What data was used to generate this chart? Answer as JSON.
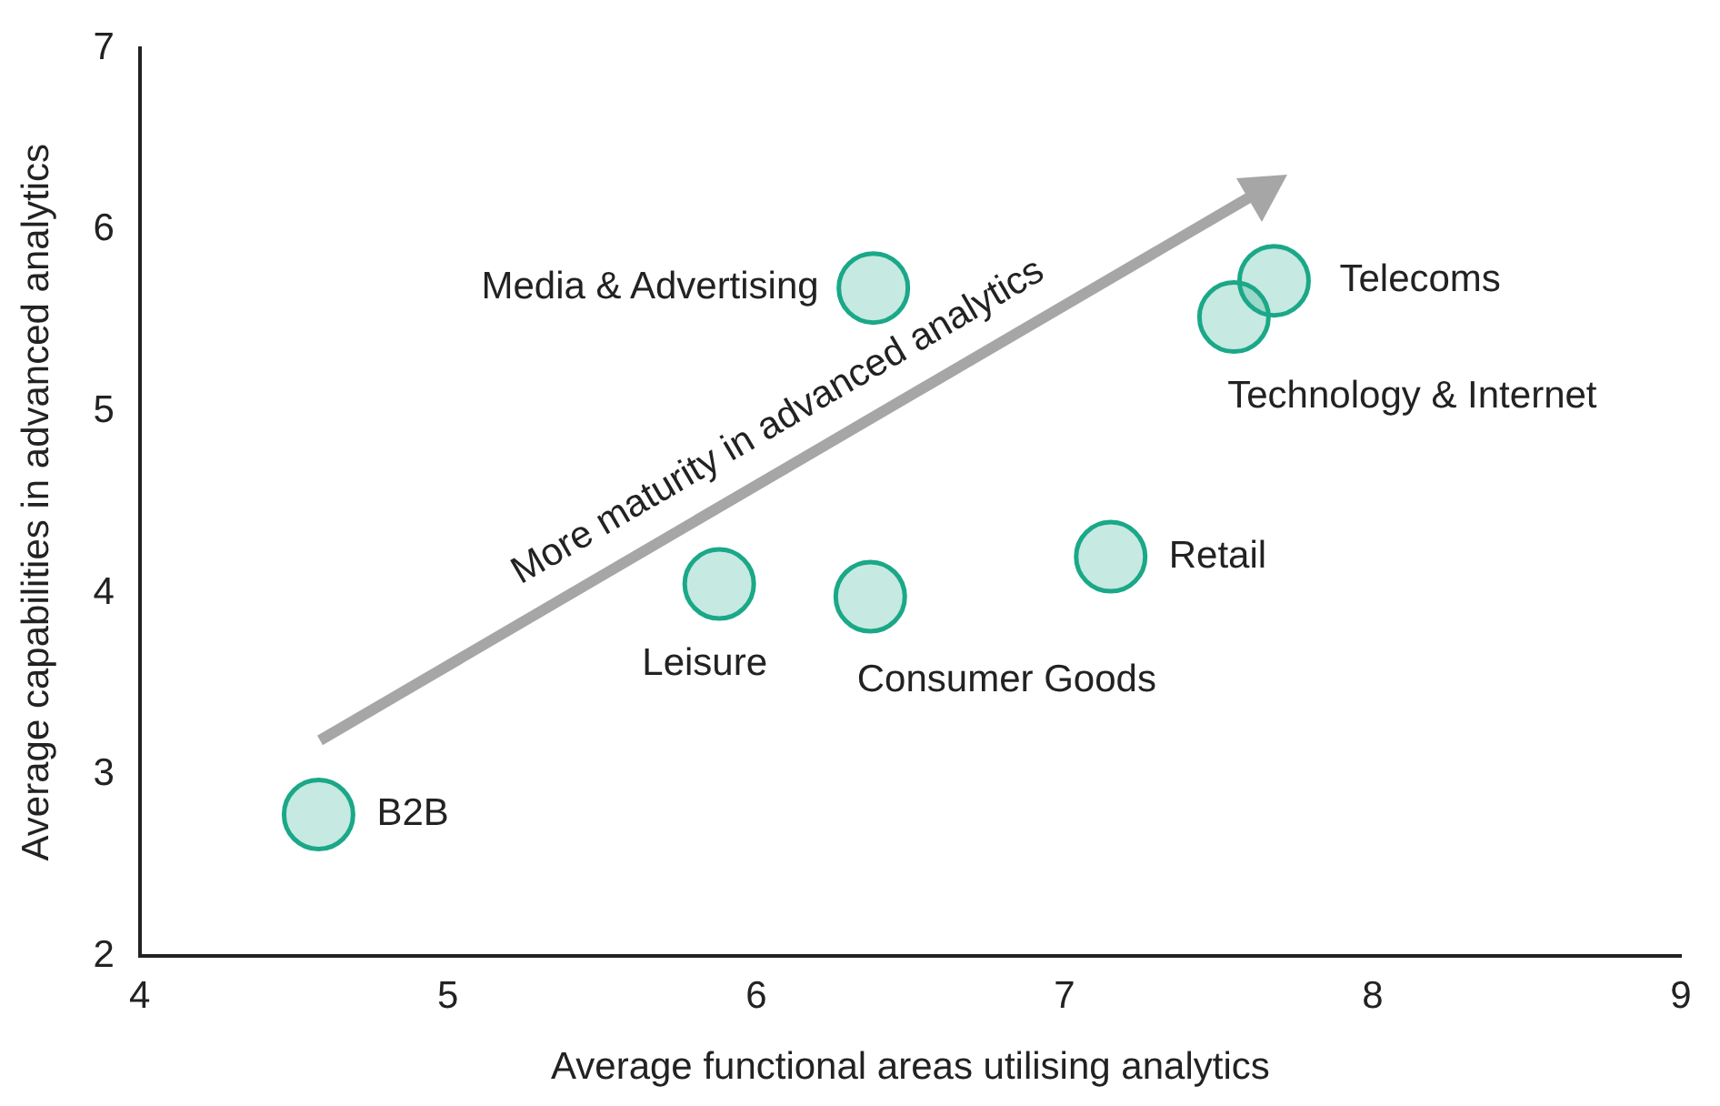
{
  "chart_data": {
    "type": "scatter",
    "xlabel": "Average functional areas utilising analytics",
    "ylabel": "Average capabilities in advanced analytics",
    "x": [
      4.58,
      5.88,
      6.37,
      7.15,
      6.38,
      7.68,
      7.55
    ],
    "values": [
      2.78,
      4.05,
      3.98,
      4.2,
      5.68,
      5.72,
      5.52
    ],
    "color": "#1aa888",
    "marker": "circle",
    "grid": false,
    "legend": false,
    "xlim": [
      4,
      9
    ],
    "xticks": [
      4,
      5,
      6,
      7,
      8,
      9
    ],
    "ylim": [
      2,
      7
    ],
    "yticks": [
      2,
      3,
      4,
      5,
      6,
      7
    ],
    "annotations": [
      {
        "text": "B2B",
        "x": 4.58,
        "y": 2.78
      },
      {
        "text": "Leisure",
        "x": 5.88,
        "y": 4.05
      },
      {
        "text": "Consumer Goods",
        "x": 6.37,
        "y": 3.98
      },
      {
        "text": "Retail",
        "x": 7.15,
        "y": 4.2
      },
      {
        "text": "Media & Advertising",
        "x": 6.38,
        "y": 5.68
      },
      {
        "text": "Telecoms",
        "x": 7.68,
        "y": 5.72
      },
      {
        "text": "Technology & Internet",
        "x": 7.55,
        "y": 5.52
      },
      "More maturity in advanced analytics"
    ]
  }
}
